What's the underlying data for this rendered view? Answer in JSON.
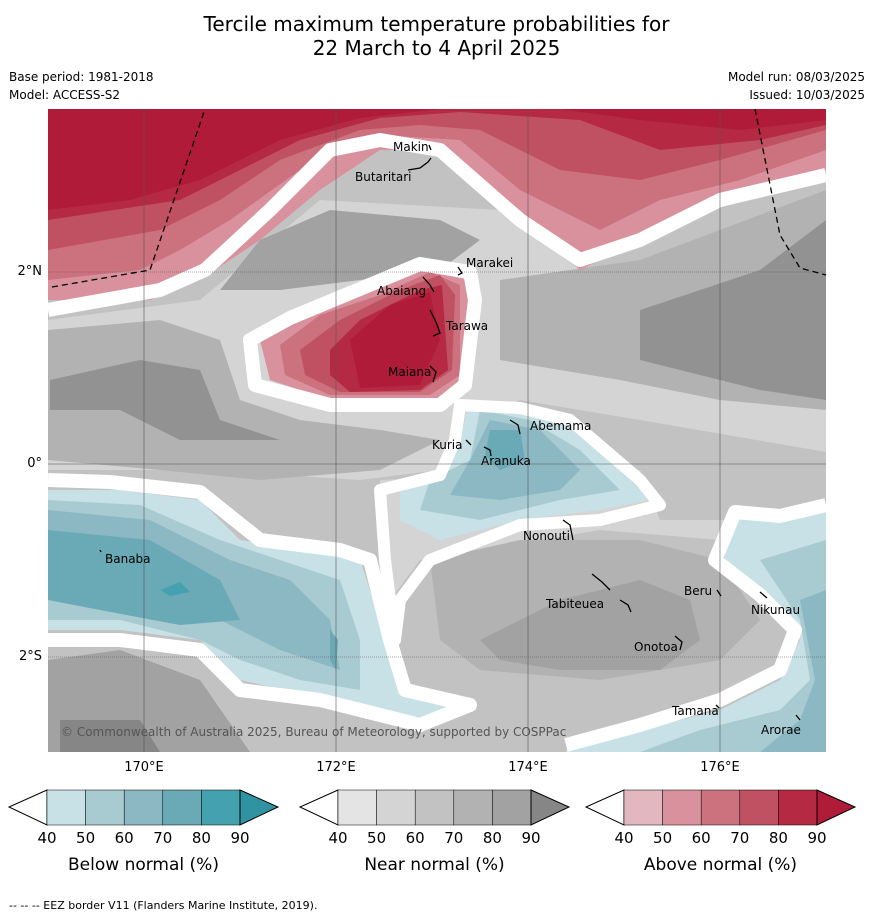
{
  "title_line1": "Tercile maximum temperature probabilities for",
  "title_line2": "22 March to 4 April 2025",
  "base_period": "Base period: 1981-2018",
  "model": "Model: ACCESS-S2",
  "model_run": "Model run: 08/03/2025",
  "issued": "Issued: 10/03/2025",
  "copyright": "© Commonwealth of Australia 2025, Bureau of Meteorology, supported by COSPPac",
  "footer": "--  --  -- EEZ border V11 (Flanders Marine Institute, 2019).",
  "lat_labels": [
    "2°N",
    "0°",
    "2°S"
  ],
  "lon_labels": [
    "170°E",
    "172°E",
    "174°E",
    "176°E"
  ],
  "places": [
    "Makin",
    "Butaritari",
    "Marakei",
    "Abaiang",
    "Tarawa",
    "Maiana",
    "Abemama",
    "Kuria",
    "Aranuka",
    "Banaba",
    "Nonouti",
    "Beru",
    "Tabiteuea",
    "Nikunau",
    "Onotoa",
    "Tamana",
    "Arorae"
  ],
  "colorbars": [
    {
      "title": "Below normal (%)",
      "ticks": [
        "40",
        "50",
        "60",
        "70",
        "80",
        "90"
      ],
      "colors": [
        "#ffffff",
        "#c8e1e6",
        "#a8cbd2",
        "#8cb8c4",
        "#6aaab6",
        "#44a2b0",
        "#2f93a2"
      ]
    },
    {
      "title": "Near normal (%)",
      "ticks": [
        "40",
        "50",
        "60",
        "70",
        "80",
        "90"
      ],
      "colors": [
        "#ffffff",
        "#e4e4e4",
        "#d4d4d4",
        "#c2c2c2",
        "#b2b2b2",
        "#a2a2a2",
        "#868686"
      ]
    },
    {
      "title": "Above normal (%)",
      "ticks": [
        "40",
        "50",
        "60",
        "70",
        "80",
        "90"
      ],
      "colors": [
        "#ffffff",
        "#e3b7bf",
        "#d9929d",
        "#cc717e",
        "#c05163",
        "#b52a42",
        "#b01b3a"
      ]
    }
  ]
}
